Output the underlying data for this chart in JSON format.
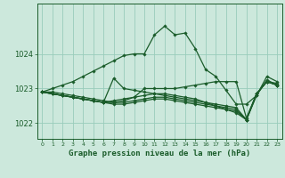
{
  "title": "Graphe pression niveau de la mer (hPa)",
  "bg_color": "#cce8dc",
  "grid_color": "#99ccbb",
  "line_color": "#1a5c2a",
  "xlim": [
    -0.5,
    23.5
  ],
  "ylim": [
    1021.55,
    1025.45
  ],
  "yticks": [
    1022,
    1023,
    1024
  ],
  "xticks": [
    0,
    1,
    2,
    3,
    4,
    5,
    6,
    7,
    8,
    9,
    10,
    11,
    12,
    13,
    14,
    15,
    16,
    17,
    18,
    19,
    20,
    21,
    22,
    23
  ],
  "lines": [
    {
      "x": [
        0,
        1,
        2,
        3,
        4,
        5,
        6,
        7,
        8,
        9,
        10,
        11,
        12,
        13,
        14,
        15,
        16,
        17,
        18,
        19,
        20,
        21,
        22,
        23
      ],
      "y": [
        1022.9,
        1023.0,
        1023.1,
        1023.2,
        1023.35,
        1023.5,
        1023.65,
        1023.8,
        1023.95,
        1024.0,
        1024.0,
        1024.55,
        1024.8,
        1024.55,
        1024.6,
        1024.15,
        1023.55,
        1023.35,
        1022.95,
        1022.55,
        1022.55,
        1022.8,
        1023.35,
        1023.2
      ]
    },
    {
      "x": [
        0,
        1,
        2,
        3,
        4,
        5,
        6,
        7,
        8,
        9,
        10,
        11,
        12,
        13,
        14,
        15,
        16,
        17,
        18,
        19,
        20,
        21,
        22,
        23
      ],
      "y": [
        1022.9,
        1022.85,
        1022.8,
        1022.75,
        1022.7,
        1022.65,
        1022.6,
        1022.6,
        1022.65,
        1022.75,
        1023.0,
        1023.0,
        1023.0,
        1023.0,
        1023.05,
        1023.1,
        1023.15,
        1023.2,
        1023.2,
        1023.2,
        1022.15,
        1022.85,
        1023.2,
        1023.15
      ]
    },
    {
      "x": [
        0,
        1,
        2,
        3,
        4,
        5,
        6,
        7,
        8,
        9,
        10,
        11,
        12,
        13,
        14,
        15,
        16,
        17,
        18,
        19,
        20,
        21,
        22,
        23
      ],
      "y": [
        1022.9,
        1022.85,
        1022.8,
        1022.75,
        1022.7,
        1022.65,
        1022.6,
        1022.55,
        1022.55,
        1022.6,
        1022.65,
        1022.7,
        1022.7,
        1022.65,
        1022.6,
        1022.55,
        1022.5,
        1022.45,
        1022.4,
        1022.35,
        1022.1,
        1022.85,
        1023.2,
        1023.1
      ]
    },
    {
      "x": [
        0,
        1,
        2,
        3,
        4,
        5,
        6,
        7,
        8,
        9,
        10,
        11,
        12,
        13,
        14,
        15,
        16,
        17,
        18,
        19,
        20,
        21,
        22,
        23
      ],
      "y": [
        1022.9,
        1022.85,
        1022.8,
        1022.75,
        1022.7,
        1022.65,
        1022.6,
        1023.3,
        1023.0,
        1022.95,
        1022.9,
        1022.85,
        1022.8,
        1022.75,
        1022.7,
        1022.65,
        1022.6,
        1022.55,
        1022.5,
        1022.45,
        1022.1,
        1022.8,
        1023.25,
        1023.1
      ]
    },
    {
      "x": [
        0,
        1,
        2,
        3,
        4,
        5,
        6,
        7,
        8,
        9,
        10,
        11,
        12,
        13,
        14,
        15,
        16,
        17,
        18,
        19,
        20,
        21,
        22,
        23
      ],
      "y": [
        1022.9,
        1022.9,
        1022.85,
        1022.8,
        1022.75,
        1022.7,
        1022.65,
        1022.6,
        1022.6,
        1022.65,
        1022.7,
        1022.75,
        1022.75,
        1022.7,
        1022.65,
        1022.6,
        1022.55,
        1022.5,
        1022.45,
        1022.4,
        1022.1,
        1022.85,
        1023.2,
        1023.1
      ]
    },
    {
      "x": [
        0,
        1,
        2,
        3,
        4,
        5,
        6,
        7,
        8,
        9,
        10,
        11,
        12,
        13,
        14,
        15,
        16,
        17,
        18,
        19,
        20,
        21,
        22,
        23
      ],
      "y": [
        1022.9,
        1022.85,
        1022.8,
        1022.75,
        1022.7,
        1022.65,
        1022.6,
        1022.65,
        1022.7,
        1022.75,
        1022.8,
        1022.85,
        1022.85,
        1022.8,
        1022.75,
        1022.7,
        1022.6,
        1022.5,
        1022.4,
        1022.3,
        1022.1,
        1022.85,
        1023.2,
        1023.1
      ]
    }
  ]
}
